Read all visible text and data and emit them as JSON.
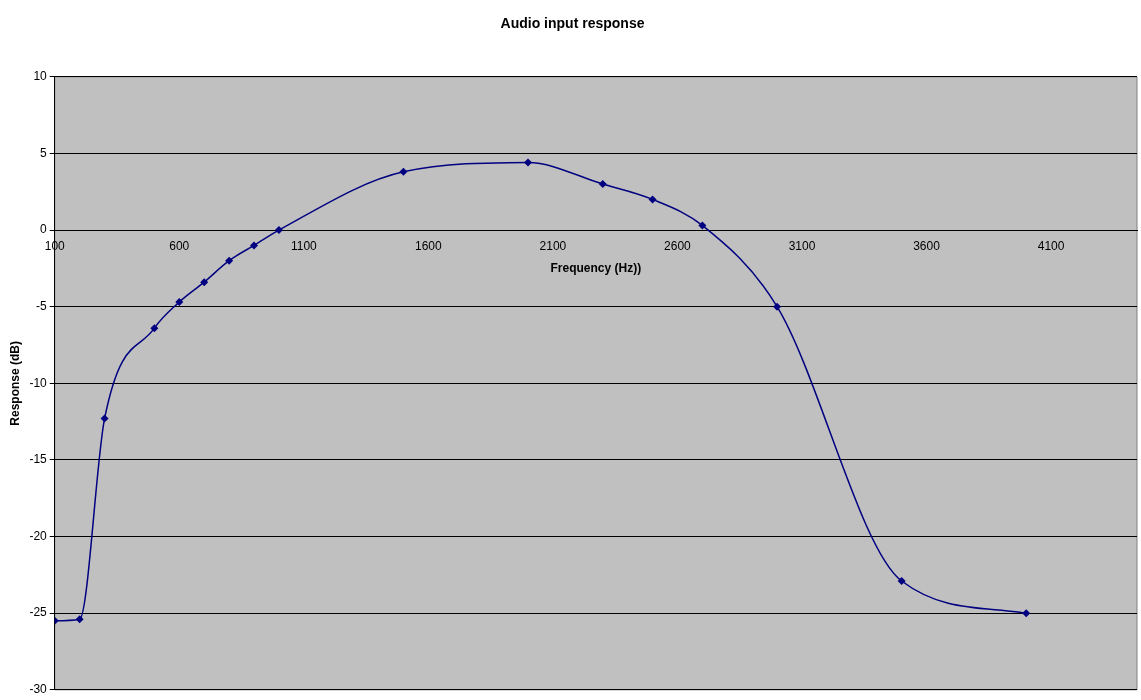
{
  "chart_data": {
    "type": "line",
    "title": "Audio input response",
    "xlabel": "Frequency (Hz))",
    "ylabel": "Response (dB)",
    "x": [
      100,
      200,
      300,
      500,
      600,
      700,
      800,
      900,
      1000,
      1500,
      2000,
      2300,
      2500,
      2700,
      3000,
      3500,
      4000
    ],
    "series": [
      {
        "color": "#000080",
        "values": [
          -25.5,
          -25.4,
          -12.3,
          -6.4,
          -4.7,
          -3.4,
          -2,
          -1,
          0,
          3.8,
          4.4,
          3,
          2,
          0.3,
          -5,
          -22.9,
          -25
        ]
      }
    ],
    "xlim": [
      100,
      4445
    ],
    "xticks": [
      100,
      600,
      1100,
      1600,
      2100,
      2600,
      3100,
      3600,
      4100
    ],
    "ylim": [
      -30,
      10
    ],
    "yticks": [
      -30,
      -25,
      -20,
      -15,
      -10,
      -5,
      0,
      5,
      10
    ],
    "grid": "y",
    "legend": false,
    "marker": "diamond",
    "line_style": "solid"
  }
}
